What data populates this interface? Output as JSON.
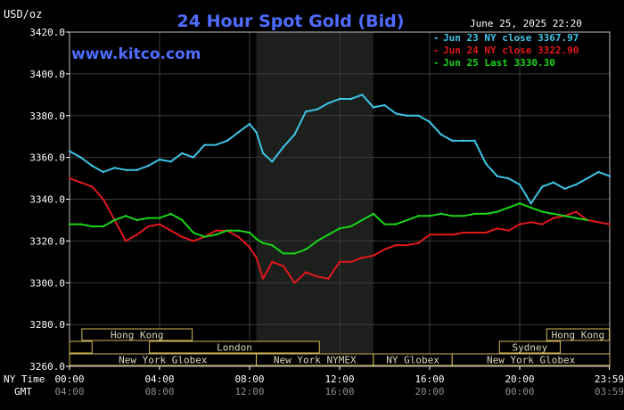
{
  "chart_data": {
    "type": "line",
    "title": "24 Hour Spot Gold (Bid)",
    "ylabel": "USD/oz",
    "source": "www.kitco.com",
    "timestamp": "June 25, 2025 22:20",
    "ylim": [
      3260,
      3420
    ],
    "y_ticks": [
      "3420.0",
      "3400.0",
      "3380.0",
      "3360.0",
      "3340.0",
      "3320.0",
      "3300.0",
      "3280.0",
      "3260.0"
    ],
    "y_tick_values": [
      3420,
      3400,
      3380,
      3360,
      3340,
      3320,
      3300,
      3280,
      3260
    ],
    "x_range_hours": [
      0,
      24
    ],
    "x_tick_hours": [
      0,
      4,
      8,
      12,
      16,
      20,
      23.98
    ],
    "x_label_ny": "NY Time",
    "x_label_gmt": "GMT",
    "x_ticks_ny": [
      "00:00",
      "04:00",
      "08:00",
      "12:00",
      "16:00",
      "20:00",
      "23:59"
    ],
    "x_ticks_gmt": [
      "04:00",
      "08:00",
      "12:00",
      "16:00",
      "20:00",
      "00:00",
      "03:59"
    ],
    "grid": true,
    "legend_position": "top-right",
    "highlighted_period_hours": [
      8.3,
      13.5
    ],
    "colors": {
      "background": "#000000",
      "title": "#4f6cff",
      "source": "#4f6cff",
      "axis": "#ffffff",
      "grid": "#3c3c3c",
      "highlight": "#1c1f1c",
      "session_box": "#d2b85a",
      "session_text": "#d9d9b8"
    },
    "series": [
      {
        "name": "Jun 23 NY close 3367.97",
        "color": "#3ec4e6",
        "x": [
          0,
          0.5,
          1,
          1.5,
          2,
          2.5,
          3,
          3.5,
          4,
          4.5,
          5,
          5.5,
          6,
          6.5,
          7,
          7.5,
          8,
          8.3,
          8.6,
          9,
          9.5,
          10,
          10.5,
          11,
          11.5,
          12,
          12.5,
          13,
          13.5,
          14,
          14.5,
          15,
          15.5,
          16,
          16.5,
          17,
          17.5,
          18,
          18.5,
          19,
          19.5,
          20,
          20.5,
          21,
          21.5,
          22,
          22.5,
          23,
          23.5,
          24
        ],
        "values": [
          3363,
          3360,
          3356,
          3353,
          3355,
          3354,
          3354,
          3356,
          3359,
          3358,
          3362,
          3360,
          3366,
          3366,
          3368,
          3372,
          3376,
          3372,
          3362,
          3358,
          3365,
          3371,
          3382,
          3383,
          3386,
          3388,
          3388,
          3390,
          3384,
          3385,
          3381,
          3380,
          3380,
          3377,
          3371,
          3368,
          3368,
          3368,
          3357,
          3351,
          3350,
          3347,
          3338,
          3346,
          3348,
          3345,
          3347,
          3350,
          3353,
          3351
        ]
      },
      {
        "name": "Jun 24 NY close 3322.90",
        "color": "#e0191c",
        "x": [
          0,
          0.5,
          1,
          1.5,
          2,
          2.5,
          3,
          3.5,
          4,
          4.5,
          5,
          5.5,
          6,
          6.5,
          7,
          7.5,
          8,
          8.3,
          8.6,
          9,
          9.5,
          10,
          10.5,
          11,
          11.5,
          12,
          12.5,
          13,
          13.5,
          14,
          14.5,
          15,
          15.5,
          16,
          16.5,
          17,
          17.5,
          18,
          18.5,
          19,
          19.5,
          20,
          20.5,
          21,
          21.5,
          22,
          22.5,
          23,
          23.5,
          24
        ],
        "values": [
          3350,
          3348,
          3346,
          3340,
          3330,
          3320,
          3323,
          3327,
          3328,
          3325,
          3322,
          3320,
          3322,
          3325,
          3325,
          3322,
          3317,
          3312,
          3302,
          3310,
          3308,
          3300,
          3305,
          3303,
          3302,
          3310,
          3310,
          3312,
          3313,
          3316,
          3318,
          3318,
          3319,
          3323,
          3323,
          3323,
          3324,
          3324,
          3324,
          3326,
          3325,
          3328,
          3329,
          3328,
          3331,
          3332,
          3334,
          3330,
          3329,
          3328
        ]
      },
      {
        "name": "Jun 25 Last 3330.30",
        "color": "#18d418",
        "x": [
          0,
          0.5,
          1,
          1.5,
          2,
          2.5,
          3,
          3.5,
          4,
          4.5,
          5,
          5.5,
          6,
          6.5,
          7,
          7.5,
          8,
          8.3,
          8.6,
          9,
          9.5,
          10,
          10.5,
          11,
          11.5,
          12,
          12.5,
          13,
          13.5,
          14,
          14.5,
          15,
          15.5,
          16,
          16.5,
          17,
          17.5,
          18,
          18.5,
          19,
          19.5,
          20,
          20.5,
          21,
          21.5,
          22,
          22.5,
          23
        ],
        "values": [
          3328,
          3328,
          3327,
          3327,
          3330,
          3332,
          3330,
          3331,
          3331,
          3333,
          3330,
          3324,
          3322,
          3323,
          3325,
          3325,
          3324,
          3321,
          3319,
          3318,
          3314,
          3314,
          3316,
          3320,
          3323,
          3326,
          3327,
          3330,
          3333,
          3328,
          3328,
          3330,
          3332,
          3332,
          3333,
          3332,
          3332,
          3333,
          3333,
          3334,
          3336,
          3338,
          3336,
          3334,
          3333,
          3332,
          3331,
          3330
        ]
      }
    ],
    "sessions": [
      {
        "label": "Hong Kong",
        "row": 0,
        "start": 0.55,
        "end": 5.45
      },
      {
        "label": "Hong Kong",
        "row": 0,
        "start": 21.2,
        "end": 23.98
      },
      {
        "label": "",
        "row": 1,
        "start": 0,
        "end": 1.0
      },
      {
        "label": "London",
        "row": 1,
        "start": 3.55,
        "end": 11.1
      },
      {
        "label": "Sydney",
        "row": 1,
        "start": 19.1,
        "end": 21.8
      },
      {
        "label": "New York Globex",
        "row": 2,
        "start": 0,
        "end": 8.3
      },
      {
        "label": "New York NYMEX",
        "row": 2,
        "start": 8.3,
        "end": 13.5
      },
      {
        "label": "NY Globex",
        "row": 2,
        "start": 13.5,
        "end": 17.0
      },
      {
        "label": "New York Globex",
        "row": 2,
        "start": 17.0,
        "end": 24
      }
    ]
  }
}
